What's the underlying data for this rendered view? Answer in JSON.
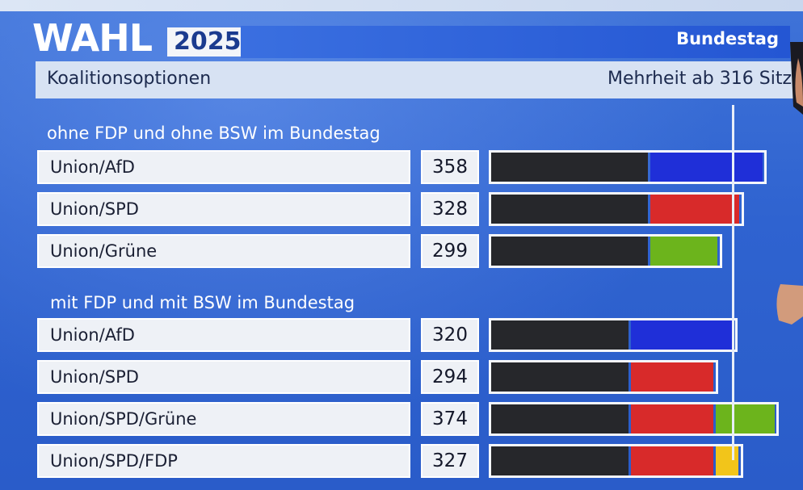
{
  "header": {
    "logo": "WAHL",
    "year": "2025",
    "tag": "Bundestag"
  },
  "subheader": {
    "title": "Koalitionsoptionen",
    "majority": "Mehrheit ab 316 Sitz"
  },
  "colors": {
    "union": "#26272b",
    "afd": "#1f2fd8",
    "spd": "#d82a2a",
    "gruene": "#6cb41c",
    "fdp": "#f2c51a"
  },
  "chart_data": {
    "type": "bar",
    "title": "Koalitionsoptionen",
    "majority_threshold": 316,
    "groups": [
      {
        "title": "ohne FDP und ohne BSW im Bundestag",
        "rows": [
          {
            "label": "Union/AfD",
            "total": "358",
            "segments": [
              {
                "party": "union",
                "value": 208
              },
              {
                "party": "afd",
                "value": 150
              }
            ]
          },
          {
            "label": "Union/SPD",
            "total": "328",
            "segments": [
              {
                "party": "union",
                "value": 208
              },
              {
                "party": "spd",
                "value": 120
              }
            ]
          },
          {
            "label": "Union/Grüne",
            "total": "299",
            "segments": [
              {
                "party": "union",
                "value": 208
              },
              {
                "party": "gruene",
                "value": 91
              }
            ]
          }
        ]
      },
      {
        "title": "mit FDP und mit BSW im Bundestag",
        "rows": [
          {
            "label": "Union/AfD",
            "total": "320",
            "segments": [
              {
                "party": "union",
                "value": 183
              },
              {
                "party": "afd",
                "value": 137
              }
            ]
          },
          {
            "label": "Union/SPD",
            "total": "294",
            "segments": [
              {
                "party": "union",
                "value": 183
              },
              {
                "party": "spd",
                "value": 111
              }
            ]
          },
          {
            "label": "Union/SPD/Grüne",
            "total": "374",
            "segments": [
              {
                "party": "union",
                "value": 183
              },
              {
                "party": "spd",
                "value": 111
              },
              {
                "party": "gruene",
                "value": 80
              }
            ]
          },
          {
            "label": "Union/SPD/FDP",
            "total": "327",
            "segments": [
              {
                "party": "union",
                "value": 183
              },
              {
                "party": "spd",
                "value": 111
              },
              {
                "party": "fdp",
                "value": 33
              }
            ]
          }
        ]
      }
    ]
  }
}
